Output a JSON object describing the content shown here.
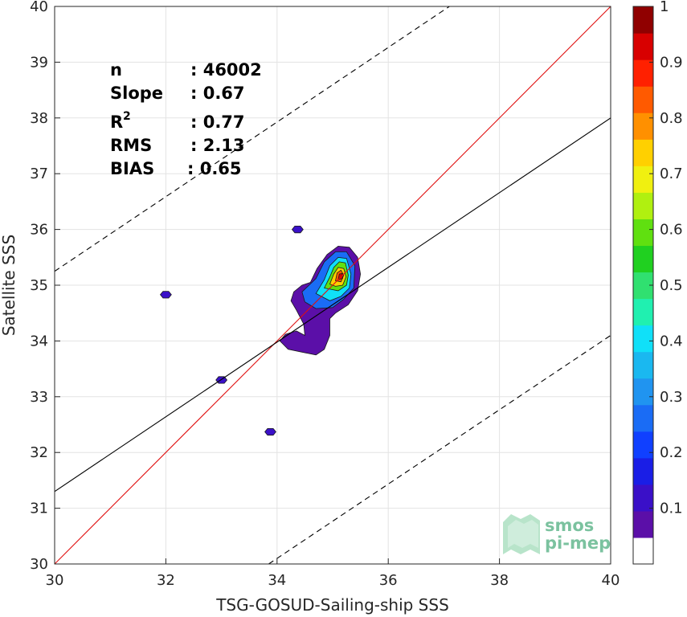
{
  "chart_data": {
    "type": "scatter",
    "plot_style": "density contour (filled)",
    "xlabel": "TSG-GOSUD-Sailing-ship SSS",
    "ylabel": "Satellite SSS",
    "xlim": [
      30,
      40
    ],
    "ylim": [
      30,
      40
    ],
    "xticks": [
      30,
      32,
      34,
      36,
      38,
      40
    ],
    "yticks": [
      30,
      31,
      32,
      33,
      34,
      35,
      36,
      37,
      38,
      39,
      40
    ],
    "grid": true,
    "stats": {
      "n_label": "n",
      "n_value": ": 46002",
      "slope_label": "Slope",
      "slope_value": ": 0.67",
      "r2_label": "R",
      "r2_sup": "2",
      "r2_value": ": 0.77",
      "rms_label": "RMS",
      "rms_value": ": 2.13",
      "bias_label": "BIAS",
      "bias_value": ": 0.65"
    },
    "lines": [
      {
        "kind": "identity",
        "color": "#e01010",
        "style": "solid",
        "x": [
          30,
          40
        ],
        "y": [
          30,
          40
        ]
      },
      {
        "kind": "regression",
        "color": "#000000",
        "style": "solid",
        "x": [
          30,
          40
        ],
        "y": [
          31.3,
          38.0
        ]
      },
      {
        "kind": "upper-bound",
        "color": "#000000",
        "style": "dashed",
        "x": [
          30,
          37.1
        ],
        "y": [
          35.25,
          40
        ]
      },
      {
        "kind": "lower-bound",
        "color": "#000000",
        "style": "dashed",
        "x": [
          33.85,
          40
        ],
        "y": [
          30,
          34.1
        ]
      }
    ],
    "density_peak": {
      "x": 35.15,
      "y": 35.15
    },
    "isolated_blobs": [
      {
        "x": 32.0,
        "y": 34.83
      },
      {
        "x": 33.0,
        "y": 33.3
      },
      {
        "x": 33.88,
        "y": 32.37
      },
      {
        "x": 34.37,
        "y": 36.0
      }
    ],
    "colorbar": {
      "ticks": [
        0.1,
        0.2,
        0.3,
        0.4,
        0.5,
        0.6,
        0.7,
        0.8,
        0.9,
        1
      ],
      "min": 0,
      "max": 1,
      "levels": 20,
      "colors": [
        "#ffffff",
        "#5b0fa8",
        "#3a10c8",
        "#1a1ee6",
        "#1040ff",
        "#1a6cf5",
        "#2094f0",
        "#1ab8f0",
        "#10e0f8",
        "#20f0b0",
        "#30e070",
        "#20d020",
        "#60e010",
        "#b0f010",
        "#f0f010",
        "#ffd000",
        "#ff9000",
        "#ff5a00",
        "#ff2000",
        "#d80000",
        "#900000"
      ]
    },
    "logo": {
      "line1": "smos",
      "line2": "pi-mep"
    }
  }
}
